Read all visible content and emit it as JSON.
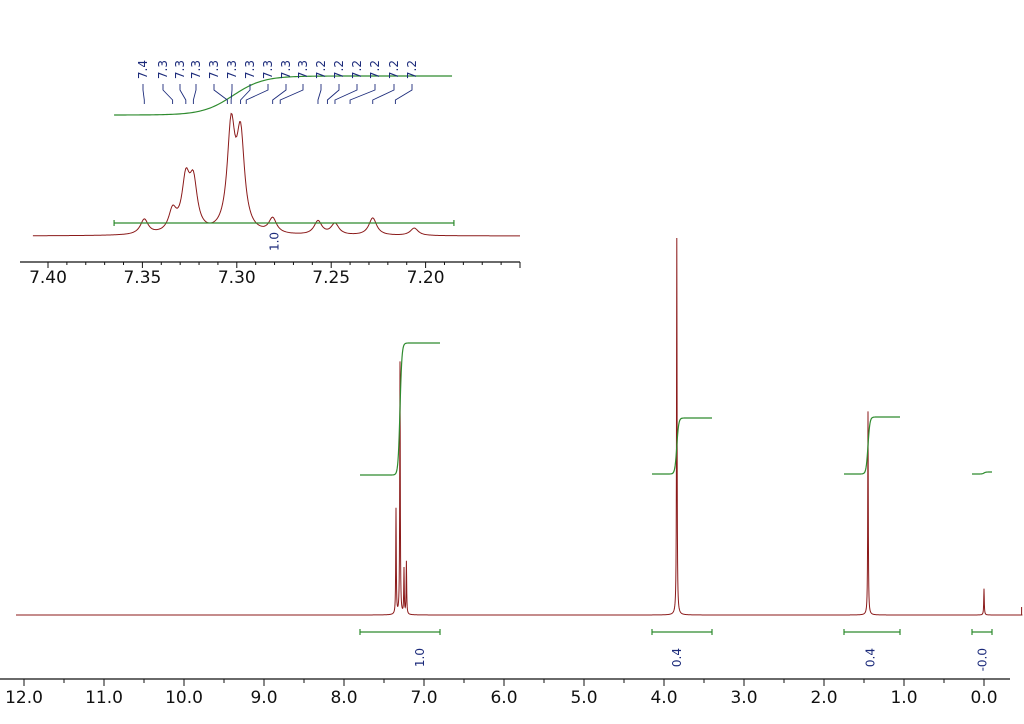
{
  "chart_data": [
    {
      "name": "main-spectrum",
      "type": "line",
      "title": "",
      "xlabel": "",
      "xlim": [
        12.3,
        -0.5
      ],
      "x_reversed": true,
      "tick_labels": [
        "12.0",
        "11.0",
        "10.0",
        "9.0",
        "8.0",
        "7.0",
        "6.0",
        "5.0",
        "4.0",
        "3.0",
        "2.0",
        "1.0",
        "0.0"
      ],
      "tick_values": [
        12.0,
        11.0,
        10.0,
        9.0,
        8.0,
        7.0,
        6.0,
        5.0,
        4.0,
        3.0,
        2.0,
        1.0,
        0.0
      ],
      "peaks": [
        {
          "ppm": 7.3,
          "intensity": 0.67
        },
        {
          "ppm": 7.35,
          "intensity": 0.28
        },
        {
          "ppm": 7.25,
          "intensity": 0.12
        },
        {
          "ppm": 7.22,
          "intensity": 0.14
        },
        {
          "ppm": 3.84,
          "intensity": 1.0
        },
        {
          "ppm": 1.45,
          "intensity": 0.54
        },
        {
          "ppm": 0.0,
          "intensity": 0.07
        }
      ],
      "integrals": [
        {
          "label": "1.0",
          "from": 7.8,
          "to": 6.8,
          "center": 7.05
        },
        {
          "label": "0.4",
          "from": 4.15,
          "to": 3.4,
          "center": 3.84
        },
        {
          "label": "0.4",
          "from": 1.75,
          "to": 1.05,
          "center": 1.42
        },
        {
          "label": "-0.0",
          "from": 0.15,
          "to": -0.1,
          "center": 0.02
        }
      ],
      "line_color": "#8b1a1a",
      "integral_color": "#2e8b2e"
    },
    {
      "name": "inset-expansion",
      "type": "line",
      "xlim": [
        7.4,
        7.15
      ],
      "x_reversed": true,
      "tick_labels": [
        "7.40",
        "7.35",
        "7.30",
        "7.25",
        "7.20"
      ],
      "tick_values": [
        7.4,
        7.35,
        7.3,
        7.25,
        7.2
      ],
      "peak_labels": [
        "7.4",
        "7.3",
        "7.3",
        "7.3",
        "7.3",
        "7.3",
        "7.3",
        "7.3",
        "7.3",
        "7.3",
        "7.2",
        "7.2",
        "7.2",
        "7.2",
        "7.2",
        "7.2"
      ],
      "peaks": [
        {
          "ppm": 7.349,
          "intensity": 0.12
        },
        {
          "ppm": 7.334,
          "intensity": 0.17
        },
        {
          "ppm": 7.327,
          "intensity": 0.4
        },
        {
          "ppm": 7.323,
          "intensity": 0.38
        },
        {
          "ppm": 7.303,
          "intensity": 0.82
        },
        {
          "ppm": 7.298,
          "intensity": 0.74
        },
        {
          "ppm": 7.281,
          "intensity": 0.12
        },
        {
          "ppm": 7.257,
          "intensity": 0.11
        },
        {
          "ppm": 7.248,
          "intensity": 0.09
        },
        {
          "ppm": 7.228,
          "intensity": 0.14
        },
        {
          "ppm": 7.206,
          "intensity": 0.06
        }
      ],
      "integrals": [
        {
          "label": "1.0",
          "from": 7.365,
          "to": 7.185,
          "center": 7.28
        }
      ]
    }
  ]
}
